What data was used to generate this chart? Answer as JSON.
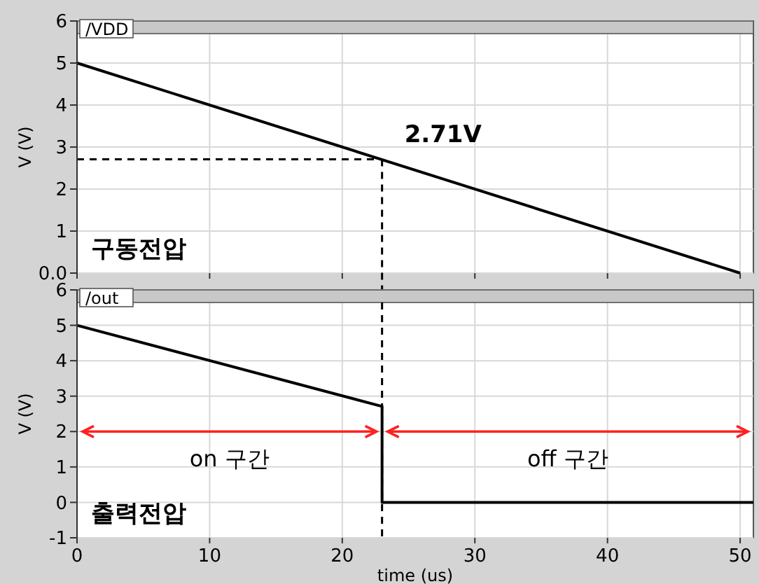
{
  "chart_data": [
    {
      "type": "line",
      "title": "/VDD",
      "ylabel": "V (V)",
      "xlim": [
        0,
        51
      ],
      "xticks": [
        0,
        10,
        20,
        30,
        40,
        50
      ],
      "ylim": [
        0,
        6
      ],
      "yticks": [
        {
          "value": 0,
          "label": "0.0"
        },
        1,
        2,
        3,
        4,
        5,
        6
      ],
      "tick_labels": "y",
      "grid": true,
      "line_style": "solid",
      "series": [
        {
          "color": "#000000",
          "x": [
            0,
            50
          ],
          "values": [
            5,
            0
          ]
        }
      ],
      "ref_lines": [
        {
          "axis": "y",
          "value": 2.71,
          "line_style": "dashed",
          "color": "#000000"
        },
        {
          "axis": "x",
          "value": 23,
          "line_style": "dashed",
          "color": "#000000"
        }
      ],
      "annotations": [
        {
          "text": "2.71V",
          "x": 23,
          "y": 2.71
        },
        "구동전압"
      ]
    },
    {
      "type": "line",
      "title": "/out",
      "xlabel": "time (us)",
      "ylabel": "V (V)",
      "xlim": [
        0,
        51
      ],
      "xticks": [
        0,
        10,
        20,
        30,
        40,
        50
      ],
      "ylim": [
        -1,
        6
      ],
      "yticks": [
        -1,
        0,
        1,
        2,
        3,
        4,
        5,
        6
      ],
      "grid": true,
      "line_style": "solid",
      "series": [
        {
          "color": "#000000",
          "x": [
            0,
            23,
            23,
            51
          ],
          "values": [
            5,
            2.71,
            0,
            0
          ]
        }
      ],
      "ref_lines": [
        {
          "axis": "x",
          "value": 23,
          "line_style": "dashed",
          "color": "#000000"
        }
      ],
      "annotations": [
        "on 구간",
        "off 구간",
        "출력전압"
      ]
    }
  ]
}
